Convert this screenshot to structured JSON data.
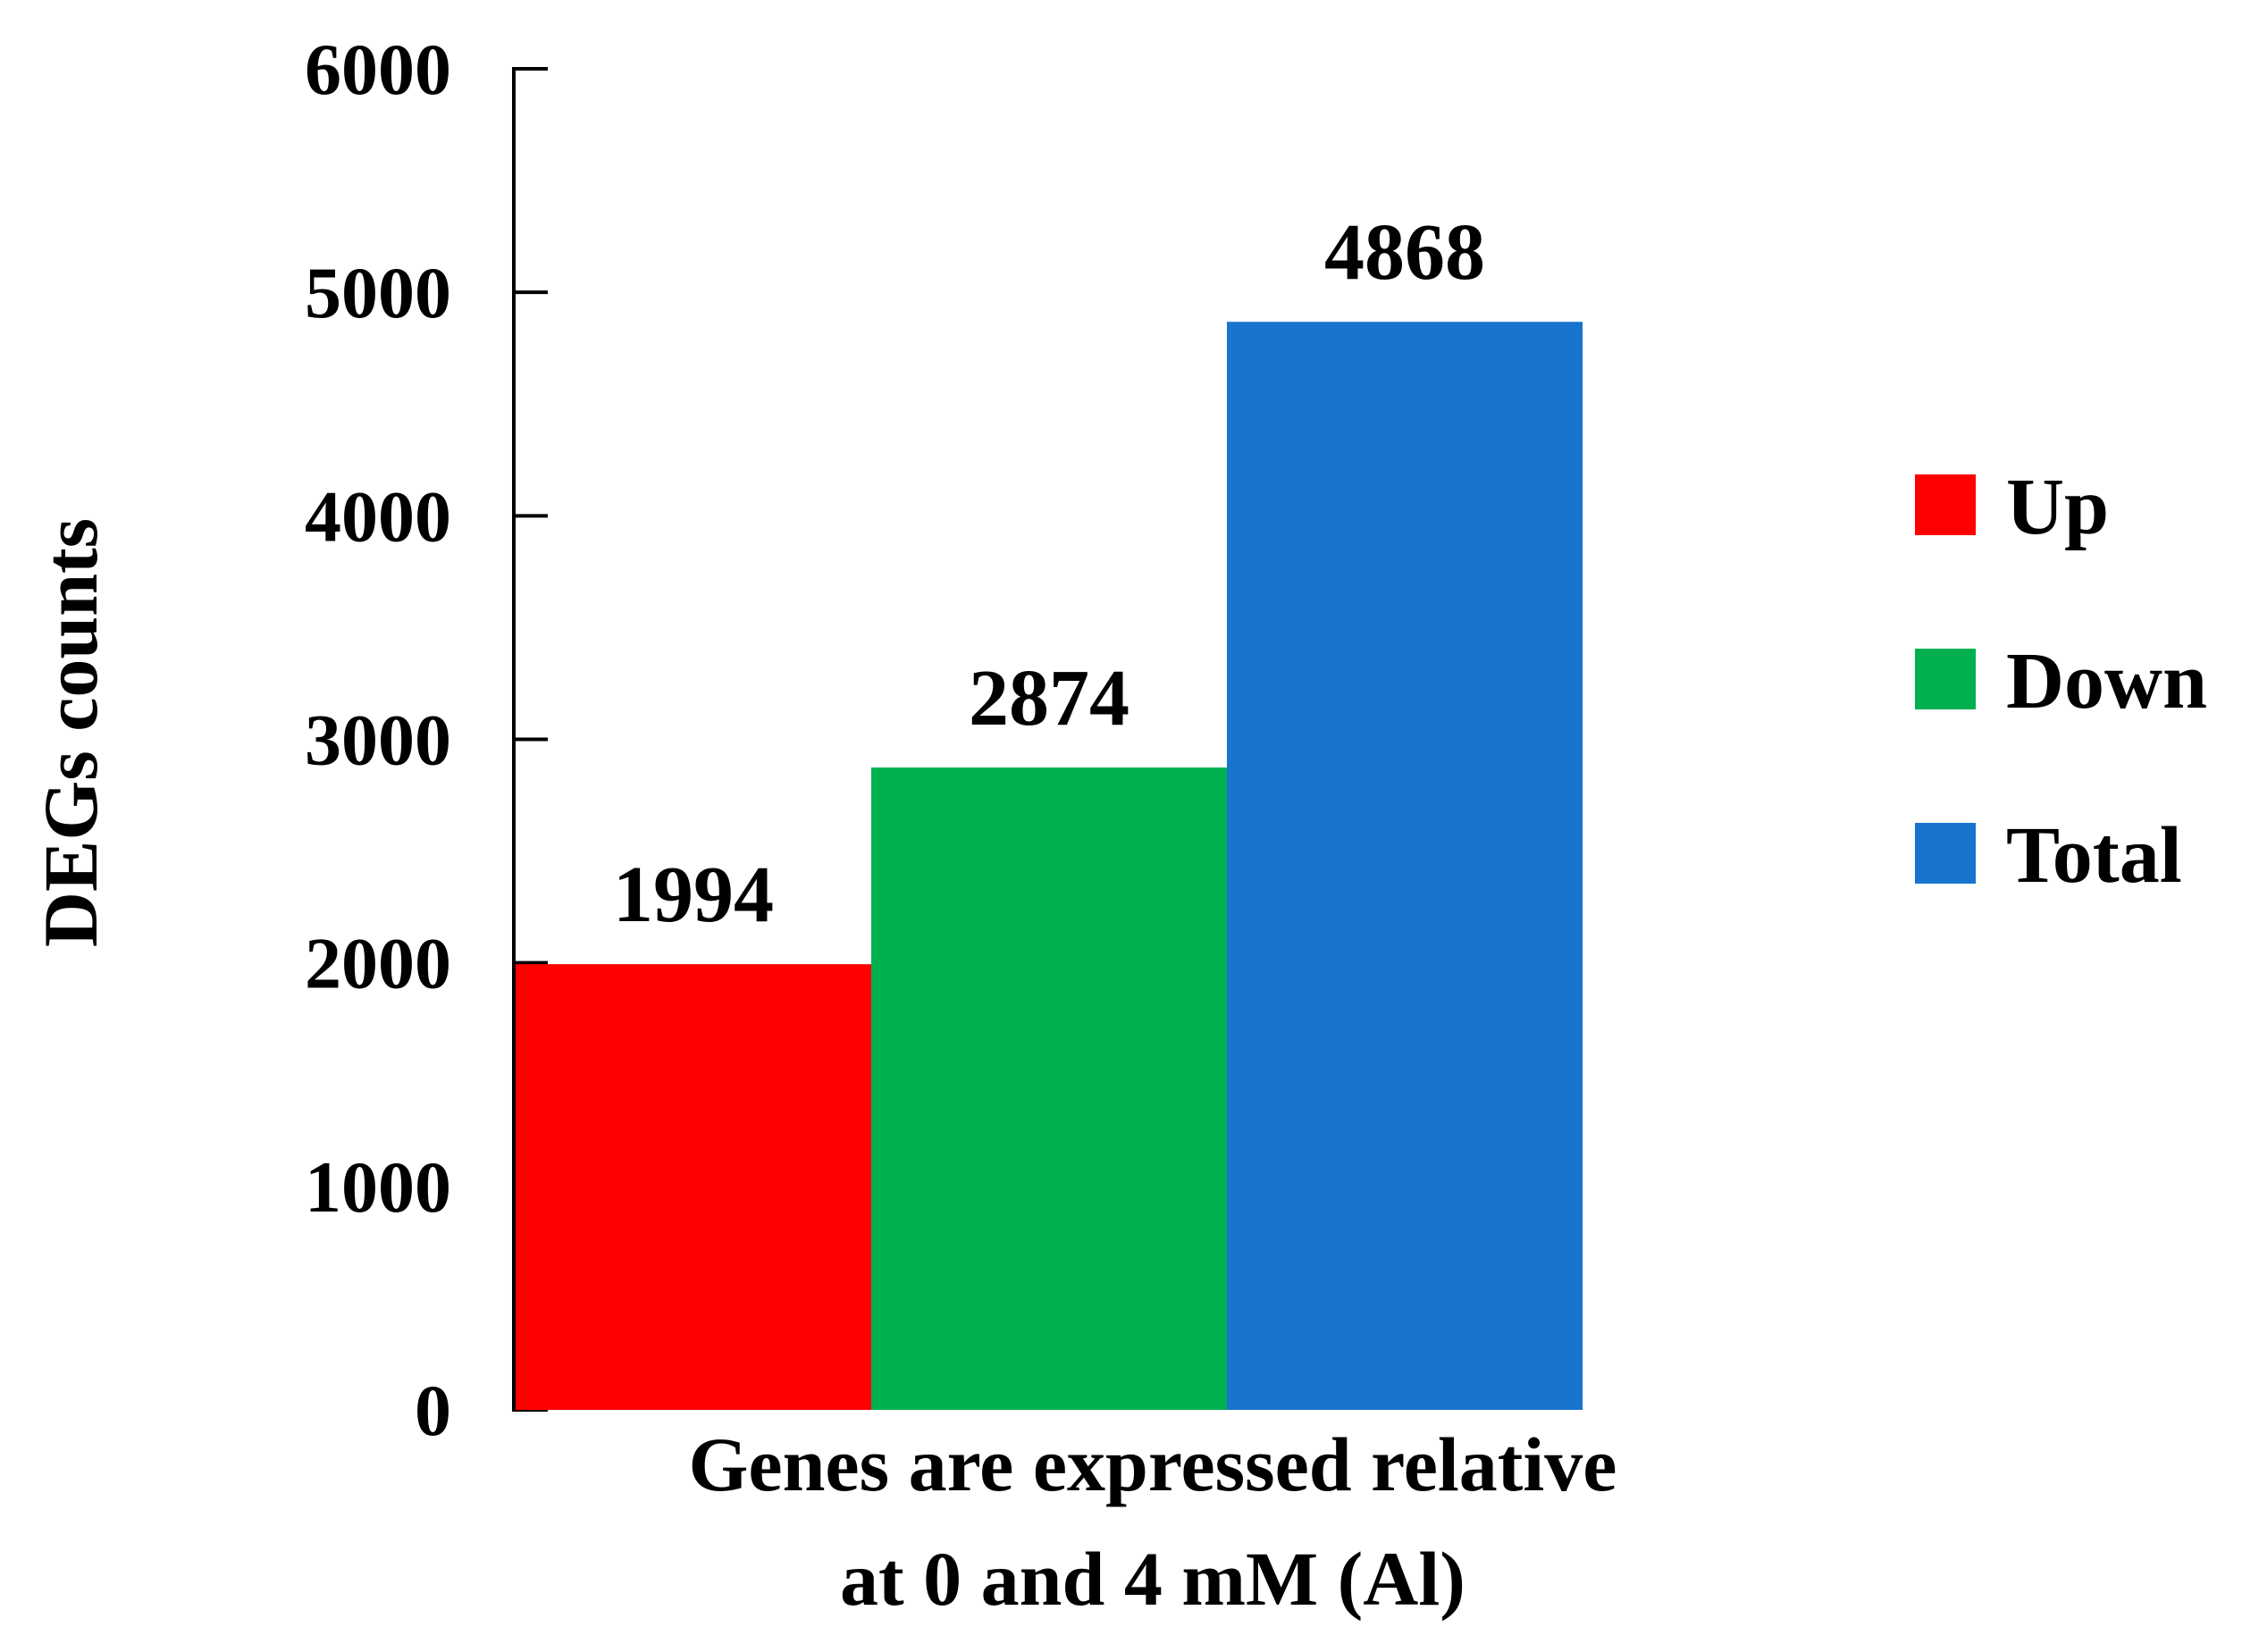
{
  "chart_data": {
    "type": "bar",
    "categories": [
      "Up",
      "Down",
      "Total"
    ],
    "values": [
      1994,
      2874,
      4868
    ],
    "data_labels": [
      "1994",
      "2874",
      "4868"
    ],
    "colors": [
      "#ff0000",
      "#00b04f",
      "#1874cd"
    ],
    "ylabel": "DEGs counts",
    "xlabel_lines": [
      "Genes are expressed relative",
      "at 0 and 4 mM (Al)"
    ],
    "ylim": [
      0,
      6000
    ],
    "yticks": [
      0,
      1000,
      2000,
      3000,
      4000,
      5000,
      6000
    ],
    "ytick_labels": [
      "0",
      "1000",
      "2000",
      "3000",
      "4000",
      "5000",
      "6000"
    ],
    "legend": {
      "position": "right",
      "entries": [
        "Up",
        "Down",
        "Total"
      ]
    },
    "grid": false
  }
}
